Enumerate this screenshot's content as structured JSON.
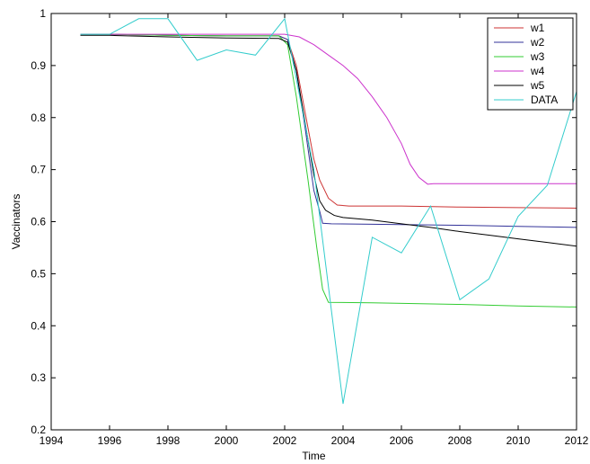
{
  "chart_data": {
    "type": "line",
    "title": "",
    "xlabel": "Time",
    "ylabel": "Vaccinators",
    "xlim": [
      1994,
      2012
    ],
    "ylim": [
      0.2,
      1.0
    ],
    "xticks": [
      1994,
      1996,
      1998,
      2000,
      2002,
      2004,
      2006,
      2008,
      2010,
      2012
    ],
    "yticks": [
      0.2,
      0.3,
      0.4,
      0.5,
      0.6,
      0.7,
      0.8,
      0.9,
      1.0
    ],
    "ytick_labels": [
      "0.2",
      "0.3",
      "0.4",
      "0.5",
      "0.6",
      "0.7",
      "0.8",
      "0.9",
      "1"
    ],
    "grid": false,
    "legend_position": "top-right",
    "series": [
      {
        "name": "w1",
        "color": "#cc3333",
        "x": [
          1995,
          1996,
          1998,
          2000,
          2001.8,
          2002.1,
          2002.4,
          2002.7,
          2003.0,
          2003.2,
          2003.5,
          2003.8,
          2004.2,
          2005,
          2006,
          2008,
          2010,
          2012
        ],
        "y": [
          0.96,
          0.96,
          0.958,
          0.957,
          0.957,
          0.95,
          0.9,
          0.81,
          0.72,
          0.68,
          0.645,
          0.632,
          0.63,
          0.63,
          0.63,
          0.628,
          0.627,
          0.626
        ]
      },
      {
        "name": "w2",
        "color": "#333399",
        "x": [
          1995,
          1996,
          1998,
          2000,
          2001.8,
          2002.1,
          2002.4,
          2002.7,
          2003.0,
          2003.2,
          2003.3,
          2003.6,
          2005,
          2008,
          2010,
          2012
        ],
        "y": [
          0.96,
          0.96,
          0.958,
          0.957,
          0.957,
          0.95,
          0.89,
          0.78,
          0.66,
          0.62,
          0.597,
          0.596,
          0.595,
          0.593,
          0.591,
          0.589
        ]
      },
      {
        "name": "w3",
        "color": "#33cc33",
        "x": [
          1995,
          1996,
          1998,
          2000,
          2001.8,
          2002.1,
          2002.4,
          2002.8,
          2003.1,
          2003.3,
          2003.5,
          2005,
          2008,
          2010,
          2012
        ],
        "y": [
          0.96,
          0.96,
          0.958,
          0.957,
          0.957,
          0.94,
          0.84,
          0.68,
          0.55,
          0.47,
          0.445,
          0.444,
          0.441,
          0.438,
          0.436
        ]
      },
      {
        "name": "w4",
        "color": "#cc33cc",
        "x": [
          1995,
          1996,
          1998,
          2000,
          2002,
          2002.5,
          2003,
          2003.5,
          2004,
          2004.5,
          2005,
          2005.5,
          2006,
          2006.3,
          2006.6,
          2006.9,
          2007.1,
          2008,
          2010,
          2012
        ],
        "y": [
          0.96,
          0.96,
          0.96,
          0.96,
          0.96,
          0.955,
          0.94,
          0.92,
          0.9,
          0.875,
          0.84,
          0.8,
          0.75,
          0.71,
          0.685,
          0.672,
          0.673,
          0.673,
          0.673,
          0.673
        ]
      },
      {
        "name": "w5",
        "color": "#000000",
        "x": [
          1995,
          1996,
          1998,
          2000,
          2001.8,
          2002.1,
          2002.4,
          2002.7,
          2003.0,
          2003.2,
          2003.4,
          2003.7,
          2004,
          2005,
          2006,
          2007,
          2008,
          2009,
          2010,
          2011,
          2012
        ],
        "y": [
          0.958,
          0.958,
          0.955,
          0.953,
          0.952,
          0.945,
          0.89,
          0.79,
          0.69,
          0.64,
          0.622,
          0.612,
          0.608,
          0.603,
          0.596,
          0.589,
          0.581,
          0.574,
          0.567,
          0.56,
          0.553
        ]
      },
      {
        "name": "DATA",
        "color": "#33cccc",
        "x": [
          1995,
          1996,
          1997,
          1998,
          1999,
          2000,
          2001,
          2002,
          2003,
          2004,
          2005,
          2006,
          2007,
          2008,
          2009,
          2010,
          2011,
          2012
        ],
        "y": [
          0.96,
          0.96,
          0.99,
          0.99,
          0.91,
          0.93,
          0.92,
          0.99,
          0.7,
          0.25,
          0.57,
          0.54,
          0.63,
          0.45,
          0.49,
          0.61,
          0.67,
          0.85
        ]
      }
    ]
  }
}
